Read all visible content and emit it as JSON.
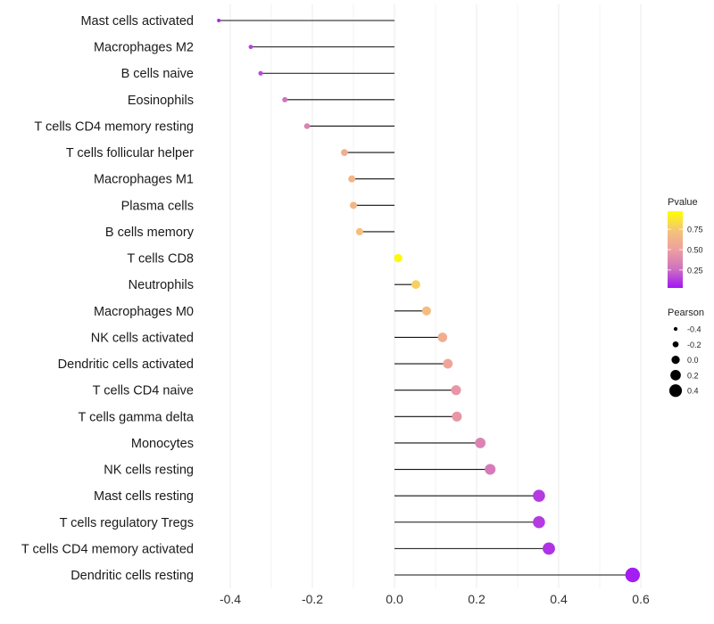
{
  "chart_data": {
    "type": "lollipop",
    "title": "",
    "xlabel": "",
    "ylabel": "",
    "xlim": [
      -0.46,
      0.65
    ],
    "xticks": [
      -0.4,
      -0.2,
      0.0,
      0.2,
      0.4,
      0.6
    ],
    "xtick_labels": [
      "-0.4",
      "-0.2",
      "0.0",
      "0.2",
      "0.4",
      "0.6"
    ],
    "grid": true,
    "categories": [
      "Mast cells activated",
      "Macrophages M2",
      "B cells naive",
      "Eosinophils",
      "T cells CD4 memory resting",
      "T cells follicular helper",
      "Macrophages M1",
      "Plasma cells",
      "B cells memory",
      "T cells CD8",
      "Neutrophils",
      "Macrophages M0",
      "NK cells activated",
      "Dendritic cells activated",
      "T cells CD4 naive",
      "T cells gamma delta",
      "Monocytes",
      "NK cells resting",
      "Mast cells resting",
      "T cells regulatory  Tregs ",
      "T cells CD4 memory activated",
      "Dendritic cells resting"
    ],
    "pearson": [
      -0.428,
      -0.35,
      -0.326,
      -0.267,
      -0.213,
      -0.122,
      -0.104,
      -0.1,
      -0.085,
      0.009,
      0.052,
      0.078,
      0.117,
      0.13,
      0.15,
      0.152,
      0.209,
      0.233,
      0.352,
      0.352,
      0.376,
      0.58
    ],
    "pvalue": [
      0.05,
      0.12,
      0.14,
      0.25,
      0.35,
      0.6,
      0.65,
      0.66,
      0.72,
      0.97,
      0.8,
      0.7,
      0.6,
      0.55,
      0.45,
      0.45,
      0.35,
      0.3,
      0.1,
      0.1,
      0.08,
      0.02
    ],
    "legend_color": {
      "title": "Pvalue",
      "ticks": [
        0.25,
        0.5,
        0.75
      ],
      "tick_labels": [
        "0.25",
        "0.50",
        "0.75"
      ],
      "colors": [
        "#a016f5",
        "#cf72c0",
        "#ee9fa0",
        "#f4c478",
        "#ffff00"
      ]
    },
    "legend_size": {
      "title": "Pearson",
      "values": [
        -0.4,
        -0.2,
        0.0,
        0.2,
        0.4
      ],
      "labels": [
        "-0.4",
        "-0.2",
        "0.0",
        "0.2",
        "0.4"
      ]
    },
    "legend_placement": "right"
  }
}
